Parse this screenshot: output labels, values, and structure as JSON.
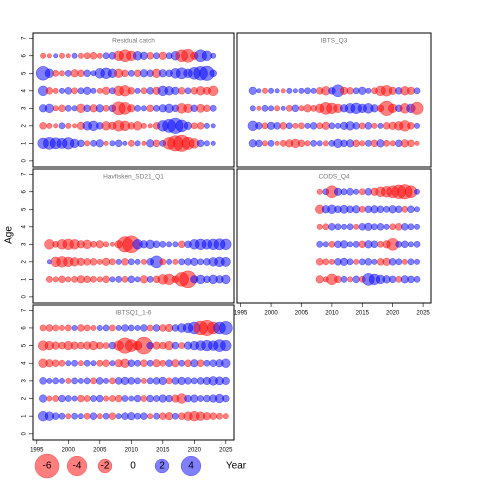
{
  "ylabel": "Age",
  "xlabel": "Year",
  "colors": {
    "positive": "#0000ff",
    "negative": "#ff0000"
  },
  "legend": {
    "values": [
      -6,
      -4,
      -2,
      0,
      2,
      4
    ]
  },
  "chart_data": [
    {
      "type": "bubble",
      "title": "Residual catch",
      "xlim": [
        1994.4,
        2026.3
      ],
      "ylim": [
        -0.35,
        7.3
      ],
      "yticks": [
        0,
        1,
        2,
        3,
        4,
        5,
        6,
        7
      ],
      "x": [
        1996,
        1997,
        1998,
        1999,
        2000,
        2001,
        2002,
        2003,
        2004,
        2005,
        2006,
        2007,
        2008,
        2009,
        2010,
        2011,
        2012,
        2013,
        2014,
        2015,
        2016,
        2017,
        2018,
        2019,
        2020,
        2021,
        2022,
        2023
      ],
      "ages": [
        1,
        2,
        3,
        4,
        5,
        6
      ],
      "values": [
        [
          1.2,
          1.5,
          1.3,
          1.1,
          1.4,
          0.8,
          0.5,
          -0.3,
          0.4,
          0.6,
          -0.2,
          0.3,
          0.5,
          0.2,
          -0.4,
          0.3,
          -0.2,
          0.6,
          -0.5,
          0.4,
          -1.5,
          -2.5,
          -2.8,
          -1.6,
          -1.0,
          0.5,
          0.3,
          0.2
        ],
        [
          -0.5,
          -0.3,
          -0.2,
          0.4,
          -0.3,
          -0.2,
          -0.6,
          0.8,
          1.0,
          0.5,
          -0.8,
          -0.6,
          -1.2,
          -1.0,
          -0.5,
          -0.8,
          -0.3,
          -0.2,
          -0.5,
          1.2,
          1.8,
          2.5,
          1.5,
          0.6,
          -0.4,
          -0.5,
          0.3,
          0.2
        ],
        [
          0.6,
          0.8,
          -0.3,
          -0.5,
          0.4,
          0.3,
          -0.8,
          0.5,
          -0.6,
          0.6,
          -0.4,
          0.5,
          -1.8,
          -1.5,
          -0.6,
          0.4,
          0.3,
          -0.5,
          0.4,
          0.6,
          0.8,
          0.5,
          -1.0,
          -0.8,
          0.5,
          -0.7,
          -0.5,
          0.4
        ],
        [
          1.0,
          -0.5,
          -0.3,
          0.3,
          0.5,
          -0.4,
          0.4,
          0.6,
          0.3,
          -0.3,
          -0.6,
          0.4,
          -1.0,
          -1.2,
          -0.5,
          0.3,
          -0.4,
          0.5,
          -0.6,
          1.0,
          0.8,
          0.6,
          -0.5,
          0.4,
          -0.5,
          -0.8,
          -0.6,
          -1.0
        ],
        [
          2.0,
          0.8,
          -0.4,
          -0.3,
          0.4,
          -0.6,
          -0.5,
          0.5,
          0.3,
          1.0,
          1.2,
          0.8,
          -0.8,
          -0.5,
          0.4,
          -0.5,
          0.6,
          0.5,
          -0.8,
          0.6,
          0.5,
          1.0,
          1.3,
          0.8,
          1.5,
          2.0,
          2.2,
          0.5
        ],
        [
          -0.3,
          -0.2,
          0.2,
          -0.3,
          -0.2,
          0.3,
          -0.3,
          -0.4,
          -0.5,
          -0.3,
          0.4,
          0.5,
          -1.0,
          -1.5,
          -1.0,
          0.8,
          0.6,
          -0.5,
          0.4,
          -0.6,
          0.4,
          0.8,
          -1.5,
          -1.8,
          -0.6,
          1.5,
          1.0,
          0.3
        ]
      ]
    },
    {
      "type": "bubble",
      "title": "IBTS_Q3",
      "xlim": [
        1994.4,
        2026.3
      ],
      "ylim": [
        -0.35,
        7.3
      ],
      "x": [
        1997,
        1998,
        1999,
        2000,
        2001,
        2002,
        2003,
        2004,
        2005,
        2006,
        2007,
        2008,
        2009,
        2010,
        2011,
        2012,
        2013,
        2014,
        2015,
        2016,
        2017,
        2018,
        2019,
        2020,
        2021,
        2022,
        2023,
        2024
      ],
      "ages": [
        1,
        2,
        3,
        4
      ],
      "values": [
        [
          0.6,
          0.5,
          -0.3,
          0.4,
          -0.2,
          -0.4,
          -0.6,
          -0.8,
          -0.5,
          -0.3,
          0.4,
          0.3,
          -0.3,
          0.4,
          0.8,
          0.5,
          0.6,
          -0.5,
          -0.3,
          0.4,
          -0.5,
          0.6,
          -0.4,
          -0.3,
          0.5,
          -0.6,
          -0.5,
          -0.2
        ],
        [
          1.0,
          0.5,
          -0.4,
          0.6,
          0.5,
          -0.5,
          0.4,
          -0.3,
          -0.4,
          0.3,
          0.5,
          -0.4,
          -0.6,
          0.4,
          0.3,
          0.6,
          0.8,
          0.5,
          -0.4,
          0.5,
          -0.3,
          0.3,
          -0.5,
          -0.6,
          -0.8,
          -1.2,
          -0.5,
          0.3
        ],
        [
          0.3,
          -0.2,
          0.4,
          0.3,
          -0.3,
          0.2,
          -0.4,
          0.5,
          -0.3,
          -0.6,
          -0.4,
          -0.8,
          -1.5,
          -1.2,
          -0.8,
          0.6,
          1.0,
          1.2,
          0.8,
          1.0,
          0.6,
          -0.5,
          -2.2,
          -0.8,
          0.5,
          -1.0,
          0.8,
          -1.6
        ],
        [
          0.6,
          0.2,
          -0.3,
          0.3,
          0.2,
          -0.2,
          0.3,
          0.2,
          0.3,
          0.4,
          0.3,
          -0.5,
          -0.8,
          0.5,
          1.5,
          -0.6,
          -0.5,
          0.4,
          0.6,
          0.3,
          -0.4,
          -1.0,
          -1.2,
          -0.6,
          0.5,
          -0.8,
          -0.6,
          0.4
        ]
      ]
    },
    {
      "type": "bubble",
      "title": "Havfisken_SD21_Q1",
      "xlim": [
        1994.4,
        2026.3
      ],
      "ylim": [
        -0.35,
        7.3
      ],
      "yticks": [
        0,
        1,
        2,
        3,
        4,
        5,
        6,
        7
      ],
      "x": [
        1997,
        1998,
        1999,
        2000,
        2001,
        2002,
        2003,
        2004,
        2005,
        2006,
        2007,
        2008,
        2009,
        2010,
        2011,
        2012,
        2013,
        2014,
        2015,
        2016,
        2017,
        2018,
        2019,
        2020,
        2021,
        2022,
        2023,
        2024,
        2025
      ],
      "ages": [
        1,
        2,
        3
      ],
      "values": [
        [
          -0.4,
          -0.3,
          -0.5,
          -0.3,
          -0.4,
          -0.6,
          -0.5,
          -0.4,
          -0.3,
          -0.5,
          0.3,
          0.4,
          -0.4,
          0.5,
          0.3,
          -0.6,
          0.4,
          -0.5,
          -1.0,
          -1.2,
          -0.5,
          -2.0,
          -3.0,
          0.6,
          0.8,
          0.5,
          0.8,
          0.6,
          0.8
        ],
        [
          0.2,
          -1.0,
          -1.2,
          -1.0,
          -0.8,
          -0.6,
          -0.5,
          -0.5,
          -0.3,
          -0.6,
          -0.4,
          0.3,
          -0.5,
          0.4,
          0.3,
          -0.3,
          0.5,
          1.5,
          -0.4,
          0.3,
          -0.3,
          0.4,
          0.5,
          0.6,
          0.4,
          0.5,
          0.8,
          1.0,
          0.9
        ],
        [
          -1.0,
          -0.4,
          -1.0,
          -1.2,
          -1.0,
          -0.6,
          -0.8,
          -0.4,
          -0.6,
          -0.3,
          -0.2,
          -0.6,
          -2.5,
          -3.0,
          1.0,
          0.6,
          0.8,
          0.5,
          0.4,
          0.3,
          0.3,
          -0.5,
          0.5,
          1.0,
          1.2,
          1.0,
          1.2,
          1.3,
          1.2
        ]
      ]
    },
    {
      "type": "bubble",
      "title": "CODS_Q4",
      "xlim": [
        1994.4,
        2026.3
      ],
      "ylim": [
        -0.35,
        7.3
      ],
      "xticks": [
        1995,
        2000,
        2005,
        2010,
        2015,
        2020,
        2025
      ],
      "x": [
        2008,
        2009,
        2010,
        2011,
        2012,
        2013,
        2014,
        2015,
        2016,
        2017,
        2018,
        2019,
        2020,
        2021,
        2022,
        2023,
        2024
      ],
      "ages": [
        1,
        2,
        3,
        4,
        5,
        6
      ],
      "values": [
        [
          -0.6,
          -0.3,
          -1.2,
          -0.5,
          0.4,
          -0.3,
          0.5,
          -0.4,
          1.5,
          1.2,
          0.8,
          0.6,
          0.5,
          -0.4,
          0.6,
          0.5,
          0.4
        ],
        [
          -0.5,
          -0.4,
          -0.3,
          0.5,
          0.6,
          0.4,
          -0.3,
          0.4,
          0.5,
          0.3,
          -0.5,
          -0.6,
          0.5,
          0.4,
          -0.3,
          0.4,
          0.3
        ],
        [
          0.4,
          0.3,
          -0.4,
          0.5,
          0.6,
          0.3,
          0.4,
          -0.5,
          0.6,
          0.5,
          -0.4,
          -0.6,
          -1.5,
          0.4,
          0.5,
          0.3,
          0.4
        ],
        [
          -0.3,
          -0.4,
          0.5,
          0.4,
          0.3,
          0.4,
          -0.3,
          0.5,
          0.6,
          0.4,
          0.5,
          0.3,
          -0.4,
          -0.5,
          0.5,
          0.4,
          0.3
        ],
        [
          -0.8,
          0.6,
          0.8,
          0.5,
          0.7,
          0.5,
          0.6,
          -0.4,
          0.5,
          0.6,
          0.5,
          0.4,
          0.6,
          0.5,
          -0.4,
          0.5,
          0.3
        ],
        [
          -0.3,
          0.4,
          -1.5,
          0.6,
          0.4,
          0.5,
          0.3,
          -0.4,
          0.5,
          -0.6,
          -1.0,
          -1.2,
          -1.5,
          -2.0,
          -2.2,
          -1.5,
          0.3
        ]
      ]
    },
    {
      "type": "bubble",
      "title": "IBTSQ1_1-6",
      "xlim": [
        1994.4,
        2026.3
      ],
      "ylim": [
        -0.35,
        7.3
      ],
      "yticks": [
        0,
        1,
        2,
        3,
        4,
        5,
        6,
        7
      ],
      "xticks": [
        1995,
        2000,
        2005,
        2010,
        2015,
        2020,
        2025
      ],
      "x": [
        1996,
        1997,
        1998,
        1999,
        2000,
        2001,
        2002,
        2003,
        2004,
        2005,
        2006,
        2007,
        2008,
        2009,
        2010,
        2011,
        2012,
        2013,
        2014,
        2015,
        2016,
        2017,
        2018,
        2019,
        2020,
        2021,
        2022,
        2023,
        2024,
        2025
      ],
      "ages": [
        1,
        2,
        3,
        4,
        5,
        6
      ],
      "values": [
        [
          1.0,
          0.8,
          0.5,
          0.4,
          -0.3,
          0.4,
          0.3,
          -0.4,
          0.5,
          -0.3,
          0.4,
          -0.5,
          0.3,
          0.5,
          0.6,
          0.4,
          0.5,
          -0.3,
          0.4,
          -0.5,
          -0.6,
          0.4,
          -0.5,
          -0.8,
          -1.0,
          -0.8,
          -0.6,
          -0.5,
          -0.4,
          -0.3
        ],
        [
          0.6,
          -0.3,
          -0.4,
          0.5,
          0.4,
          0.3,
          -0.5,
          -0.4,
          0.4,
          0.5,
          -0.3,
          -0.4,
          -0.5,
          0.4,
          0.3,
          0.5,
          -0.4,
          0.5,
          0.4,
          0.6,
          0.5,
          -0.6,
          -1.0,
          0.5,
          0.6,
          0.4,
          0.5,
          0.6,
          0.8,
          0.5
        ],
        [
          0.5,
          0.3,
          0.4,
          0.3,
          -0.3,
          0.4,
          0.3,
          0.4,
          -0.4,
          0.5,
          0.3,
          -0.4,
          0.5,
          0.6,
          0.5,
          0.4,
          -0.3,
          0.4,
          0.5,
          0.6,
          -0.4,
          0.5,
          0.6,
          0.5,
          0.4,
          0.5,
          0.6,
          0.8,
          0.7,
          0.6
        ],
        [
          -0.8,
          -0.6,
          -0.5,
          -0.4,
          0.3,
          0.4,
          -0.3,
          0.4,
          0.3,
          -0.4,
          -0.5,
          0.3,
          -0.6,
          -0.8,
          0.5,
          0.4,
          -0.5,
          0.4,
          -0.6,
          -0.4,
          0.5,
          -0.6,
          0.4,
          -0.5,
          0.6,
          -0.5,
          0.4,
          0.5,
          0.6,
          0.8
        ],
        [
          -1.0,
          -0.8,
          -0.6,
          -0.5,
          -0.8,
          -0.6,
          -0.5,
          -0.6,
          -0.8,
          -0.5,
          -0.4,
          0.5,
          -1.0,
          -2.5,
          -1.5,
          -0.8,
          -3.0,
          0.5,
          -0.6,
          -0.5,
          -0.8,
          0.5,
          -0.4,
          0.6,
          0.8,
          1.0,
          1.2,
          1.0,
          1.5,
          1.2
        ],
        [
          -0.4,
          -0.5,
          -0.4,
          -0.3,
          -0.4,
          0.3,
          -0.5,
          -0.4,
          -0.3,
          0.3,
          0.4,
          -0.4,
          0.3,
          0.5,
          0.4,
          0.3,
          0.5,
          -0.4,
          0.5,
          -0.5,
          -0.6,
          0.5,
          0.8,
          1.0,
          1.5,
          -2.0,
          -2.5,
          -1.5,
          1.5,
          1.8
        ]
      ]
    }
  ]
}
